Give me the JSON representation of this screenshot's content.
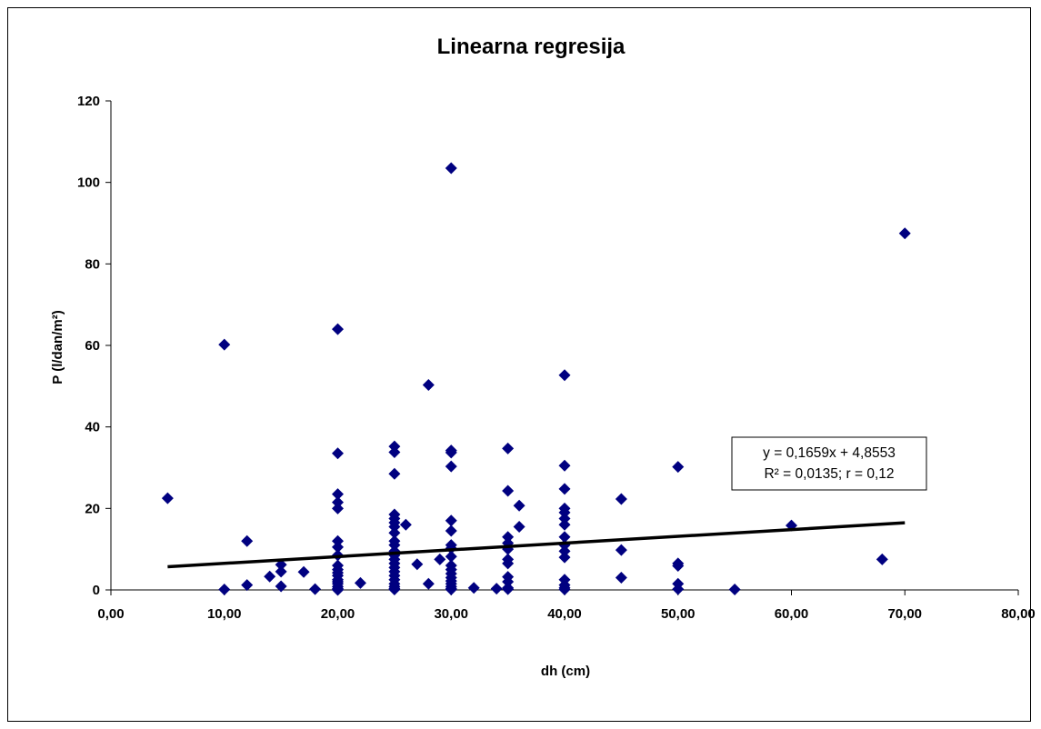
{
  "chart_data": {
    "type": "scatter",
    "title": "Linearna regresija",
    "xlabel": "dh (cm)",
    "ylabel": "P (l/dan/m²)",
    "xlim": [
      0,
      80
    ],
    "ylim": [
      0,
      120
    ],
    "x_ticks": [
      "0,00",
      "10,00",
      "20,00",
      "30,00",
      "40,00",
      "50,00",
      "60,00",
      "70,00",
      "80,00"
    ],
    "y_ticks": [
      "0",
      "20",
      "40",
      "60",
      "80",
      "100",
      "120"
    ],
    "grid": false,
    "legend": "none",
    "marker_color": "#000080",
    "trendline_color": "#000000",
    "trendline": {
      "slope": 0.1659,
      "intercept": 4.8553,
      "x_range": [
        5,
        70
      ]
    },
    "annotation": {
      "line1": "y = 0,1659x + 4,8553",
      "line2": "R² = 0,0135; r = 0,12"
    },
    "series": [
      {
        "x": [
          5,
          10,
          10,
          12,
          12,
          14,
          15,
          15,
          15,
          17,
          18,
          20,
          20,
          20,
          20,
          20,
          20,
          20,
          20,
          20,
          20,
          20,
          20,
          20,
          20,
          20,
          20,
          20,
          20,
          20,
          22,
          25,
          25,
          25,
          25,
          25,
          25,
          25,
          25,
          25,
          25,
          25,
          25,
          25,
          25,
          25,
          25,
          25,
          25,
          25,
          25,
          25,
          25,
          26,
          27,
          28,
          28,
          29,
          30,
          30,
          30,
          30,
          30,
          30,
          30,
          30,
          30,
          30,
          30,
          30,
          30,
          30,
          30,
          30,
          30,
          30,
          32,
          34,
          35,
          35,
          35,
          35,
          35,
          35,
          35,
          35,
          35,
          35,
          35,
          36,
          36,
          40,
          40,
          40,
          40,
          40,
          40,
          40,
          40,
          40,
          40,
          40,
          40,
          40,
          40,
          40,
          45,
          45,
          45,
          50,
          50,
          50,
          50,
          50,
          55,
          60,
          68,
          70
        ],
        "y": [
          22.5,
          60.2,
          0.1,
          12,
          1.2,
          3.3,
          6.2,
          4.5,
          0.9,
          4.4,
          0.2,
          64,
          33.5,
          23.5,
          21.5,
          20,
          12,
          10.5,
          8.5,
          6,
          3.5,
          2.5,
          1.5,
          0.8,
          0.3,
          0.1,
          0,
          2,
          5,
          4.2,
          1.7,
          35.2,
          33.8,
          28.5,
          18.5,
          17.5,
          15.5,
          14,
          12,
          11,
          9.5,
          8.5,
          7.5,
          6.5,
          5.5,
          4.5,
          3.5,
          2.5,
          1.5,
          0.8,
          0.3,
          0.1,
          16.5,
          16,
          6.3,
          50.3,
          1.5,
          7.5,
          103.5,
          34.2,
          33.7,
          30.3,
          17,
          14.5,
          11,
          10.2,
          8.2,
          6,
          5,
          4,
          3,
          2.2,
          1.5,
          0.8,
          0.3,
          0.1,
          0.5,
          0.3,
          34.7,
          24.3,
          13,
          11.5,
          10,
          7.5,
          6.5,
          3.2,
          2,
          0.5,
          0.2,
          20.7,
          15.5,
          52.7,
          30.5,
          24.8,
          20,
          19,
          17.5,
          16,
          13,
          11,
          9.5,
          8,
          2.5,
          1.2,
          0.5,
          0.1,
          22.3,
          9.8,
          3,
          30.2,
          6.5,
          5.9,
          1.5,
          0.2,
          0.1,
          15.8,
          7.5,
          87.5
        ]
      }
    ]
  }
}
